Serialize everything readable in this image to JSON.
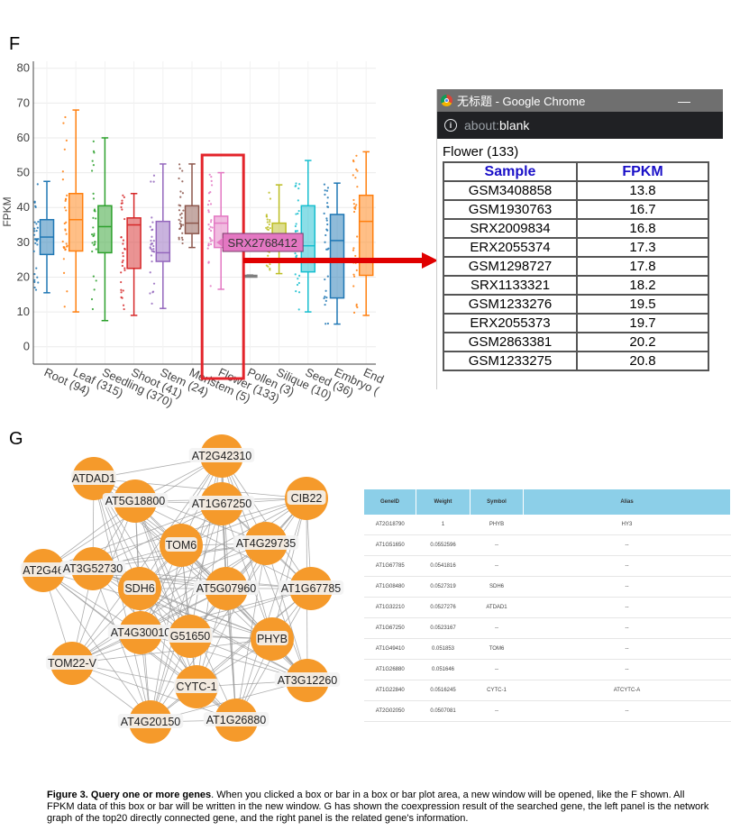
{
  "panel_f": {
    "letter": "F"
  },
  "panel_g": {
    "letter": "G"
  },
  "chart_data": {
    "type": "box",
    "ylabel": "FPKM",
    "ylim": [
      -5,
      82
    ],
    "yticks": [
      0,
      10,
      20,
      30,
      40,
      50,
      60,
      70,
      80
    ],
    "grid": true,
    "categories": [
      "Root (94)",
      "Leaf (315)",
      "Seedling (370)",
      "Shoot (41)",
      "Stem (24)",
      "Meristem (5)",
      "Flower (133)",
      "Pollen (3)",
      "Silique (10)",
      "Seed (36)",
      "Embryo (",
      "End"
    ],
    "boxes": [
      {
        "name": "Root (94)",
        "color": "#1f77b4",
        "min": 15.5,
        "q1": 26.5,
        "median": 31.5,
        "q3": 36.5,
        "max": 47.5
      },
      {
        "name": "Leaf (315)",
        "color": "#ff7f0e",
        "min": 10,
        "q1": 27.5,
        "median": 36.5,
        "q3": 44,
        "max": 68
      },
      {
        "name": "Seedling (370)",
        "color": "#2ca02c",
        "min": 7.5,
        "q1": 27,
        "median": 34.5,
        "q3": 40.5,
        "max": 60
      },
      {
        "name": "Shoot (41)",
        "color": "#d62728",
        "min": 9,
        "q1": 22.5,
        "median": 35,
        "q3": 37,
        "max": 44
      },
      {
        "name": "Stem (24)",
        "color": "#9467bd",
        "min": 11,
        "q1": 24.5,
        "median": 27,
        "q3": 36,
        "max": 52.5
      },
      {
        "name": "Meristem (5)",
        "color": "#8c564b",
        "min": 28.5,
        "q1": 32.5,
        "median": 35.5,
        "q3": 40.5,
        "max": 52.5
      },
      {
        "name": "Flower (133)",
        "color": "#e377c2",
        "min": 16.5,
        "q1": 28.5,
        "median": 35.5,
        "q3": 37.5,
        "max": 50
      },
      {
        "name": "Pollen (3)",
        "color": "#7f7f7f",
        "min": 20.3,
        "q1": 20.3,
        "median": 20.3,
        "q3": 20.5,
        "max": 20.6
      },
      {
        "name": "Silique (10)",
        "color": "#bcbd22",
        "min": 21,
        "q1": 29,
        "median": 32,
        "q3": 35.5,
        "max": 46.5
      },
      {
        "name": "Seed (36)",
        "color": "#17becf",
        "min": 10,
        "q1": 21.5,
        "median": 29,
        "q3": 40.5,
        "max": 53.5
      },
      {
        "name": "Embryo (",
        "color": "#1f77b4",
        "min": 6.5,
        "q1": 14,
        "median": 30.5,
        "q3": 38,
        "max": 47
      },
      {
        "name": "End",
        "color": "#ff7f0e",
        "min": 9,
        "q1": 20.5,
        "median": 36,
        "q3": 43.5,
        "max": 56
      }
    ],
    "tooltip": {
      "label": "SRX2768412",
      "color": "#e377c2"
    },
    "highlight": "Flower (133)"
  },
  "chrome": {
    "title": "无标题 - Google Chrome",
    "minimize": "—",
    "info_glyph": "i",
    "url_scheme": "about:",
    "url_rest": "blank"
  },
  "popup": {
    "heading": "Flower (133)",
    "col_sample": "Sample",
    "col_fpkm": "FPKM",
    "rows": [
      [
        "GSM3408858",
        "13.8"
      ],
      [
        "GSM1930763",
        "16.7"
      ],
      [
        "SRX2009834",
        "16.8"
      ],
      [
        "ERX2055374",
        "17.3"
      ],
      [
        "GSM1298727",
        "17.8"
      ],
      [
        "SRX1133321",
        "18.2"
      ],
      [
        "GSM1233276",
        "19.5"
      ],
      [
        "ERX2055373",
        "19.7"
      ],
      [
        "GSM2863381",
        "20.2"
      ],
      [
        "GSM1233275",
        "20.8"
      ]
    ]
  },
  "network": {
    "node_color": "#f59a2b",
    "nodes": [
      "AT2G42310",
      "ATDAD1",
      "AT5G18800",
      "AT1G67250",
      "CIB22",
      "TOM6",
      "AT4G29735",
      "AT2G46",
      "AT3G52730",
      "SDH6",
      "AT5G07960",
      "AT1G67785",
      "AT4G30010",
      "G51650",
      "PHYB",
      "TOM22-V",
      "CYTC-1",
      "AT3G12260",
      "AT4G20150",
      "AT1G26880"
    ]
  },
  "gene_table": {
    "headers": [
      "GeneID",
      "Weight",
      "Symbol",
      "Alias"
    ],
    "rows": [
      [
        "AT2G18790",
        "1",
        "PHYB",
        "HY3"
      ],
      [
        "AT1G51650",
        "0.0552596",
        "--",
        "--"
      ],
      [
        "AT1G67785",
        "0.0541816",
        "--",
        "--"
      ],
      [
        "AT1G08480",
        "0.0527319",
        "SDH6",
        "--"
      ],
      [
        "AT1G32210",
        "0.0527276",
        "ATDAD1",
        "--"
      ],
      [
        "AT1G67250",
        "0.0523167",
        "--",
        "--"
      ],
      [
        "AT1G49410",
        "0.051853",
        "TOM6",
        "--"
      ],
      [
        "AT1G26880",
        "0.051646",
        "--",
        "--"
      ],
      [
        "AT1G22840",
        "0.0516245",
        "CYTC-1",
        "ATCYTC-A"
      ],
      [
        "AT2G02050",
        "0.0507081",
        "--",
        "--"
      ]
    ]
  },
  "caption": {
    "label": "Figure 3. Query one or more genes",
    "text": ". When you clicked a box or bar in a box or bar plot area, a new window will be opened, like the F shown. All FPKM data of this box or bar will be written in the new window. G has shown the coexpression result of the searched gene, the left panel is the network graph of the top20 directly connected gene, and the right panel is the related gene's information."
  }
}
